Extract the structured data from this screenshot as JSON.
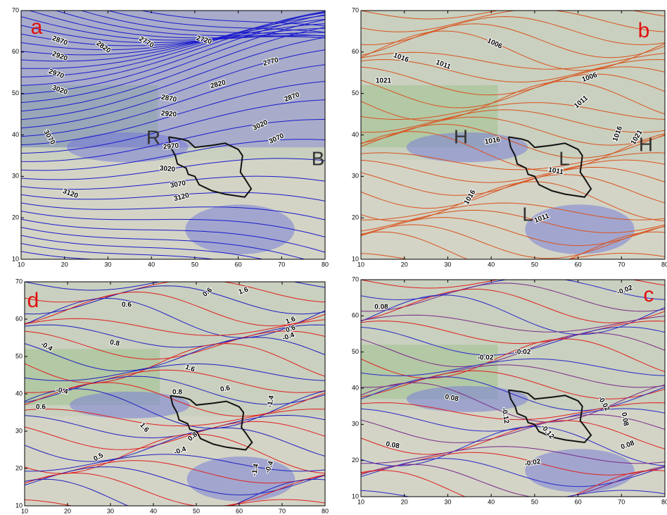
{
  "panels": [
    {
      "letter": "a",
      "xticks": [
        10,
        20,
        30,
        40,
        50,
        60,
        70,
        80
      ],
      "yticks": [
        10,
        20,
        30,
        40,
        50,
        60,
        70
      ],
      "markers": [
        "R",
        "B"
      ],
      "contour_labels": [
        "2870",
        "2920",
        "2970",
        "3020",
        "3070",
        "3120",
        "2820",
        "2770",
        "2720",
        "2770",
        "2820",
        "2870",
        "2920",
        "2970",
        "3020",
        "3070",
        "3120",
        "2870",
        "3020",
        "3070"
      ]
    },
    {
      "letter": "b",
      "xticks": [
        10,
        20,
        30,
        40,
        50,
        60,
        70,
        80
      ],
      "yticks": [
        10,
        20,
        30,
        40,
        50,
        60,
        70
      ],
      "markers": [
        "H",
        "L",
        "L",
        "H"
      ],
      "contour_labels": [
        "1016",
        "1021",
        "1011",
        "1006",
        "1006",
        "1011",
        "1016",
        "1021",
        "1016",
        "1011",
        "1016",
        "1011"
      ]
    },
    {
      "letter": "d",
      "xticks": [
        10,
        20,
        30,
        40,
        50,
        60,
        70,
        80
      ],
      "yticks": [
        10,
        20,
        30,
        40,
        50,
        60,
        70
      ],
      "markers": [],
      "contour_labels": [
        "0.6",
        "0.6",
        "1.6",
        "1.6",
        "0.6",
        "-0.4",
        "0.8",
        "-0.4",
        "-0.4",
        "1.6",
        "0.6",
        "0.8",
        "-1.4",
        "0.6",
        "1.6",
        "0.8",
        "-0.4",
        "0.5",
        "-1.4",
        "-0.4"
      ]
    },
    {
      "letter": "c",
      "xticks": [
        10,
        20,
        30,
        40,
        50,
        60,
        70,
        80
      ],
      "yticks": [
        10,
        20,
        30,
        40,
        50,
        60,
        70
      ],
      "markers": [],
      "contour_labels": [
        "0.08",
        "-0.02",
        "-0.02",
        "-0.02",
        "0.08",
        "-0.12",
        "-0.12",
        "-0.02",
        "0.08",
        "0.08",
        "0.08",
        "-0.02"
      ]
    }
  ]
}
